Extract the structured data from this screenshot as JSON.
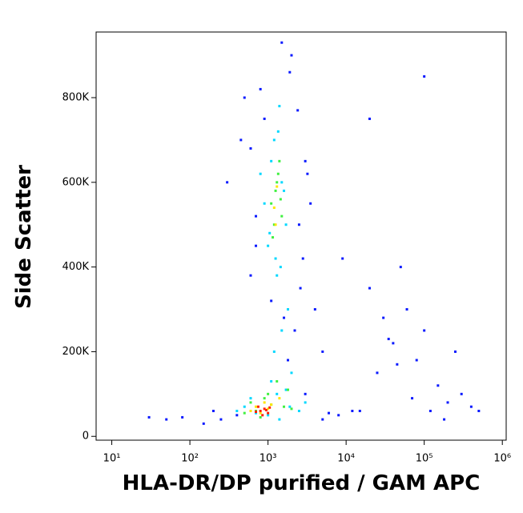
{
  "chart_data": {
    "type": "scatter",
    "xlabel": "HLA-DR/DP purified / GAM APC",
    "ylabel": "Side Scatter",
    "xscale": "log",
    "xlim": [
      6.3,
      1120000
    ],
    "ylim": [
      -9000,
      955000
    ],
    "xticks": [
      {
        "value": 10,
        "label": "10¹"
      },
      {
        "value": 100,
        "label": "10²"
      },
      {
        "value": 1000,
        "label": "10³"
      },
      {
        "value": 10000,
        "label": "10⁴"
      },
      {
        "value": 100000,
        "label": "10⁵"
      },
      {
        "value": 1000000,
        "label": "10⁶"
      }
    ],
    "yticks": [
      0,
      {
        "value": 200000,
        "label": "200K"
      },
      {
        "value": 400000,
        "label": "400K"
      },
      {
        "value": 600000,
        "label": "600K"
      },
      {
        "value": 800000,
        "label": "800K"
      }
    ],
    "series": [
      {
        "color": "#0a1aff",
        "x": [
          300,
          450,
          500,
          700,
          2500,
          3000,
          3500,
          4000,
          5000,
          400,
          600,
          800,
          2000,
          2200,
          2800,
          1800,
          900,
          1500,
          2600,
          3200,
          250,
          150,
          80,
          200,
          5000,
          8000,
          15000,
          20000,
          30000,
          40000,
          60000,
          80000,
          100000,
          150000,
          200000,
          300000,
          400000,
          25000,
          50000,
          120000,
          35000,
          70000,
          250000,
          500000,
          9000,
          12000,
          45000,
          180000,
          600,
          2400,
          1100,
          1600,
          1900,
          700,
          3000,
          30,
          50,
          20000,
          100000,
          6000
        ],
        "values": [
          600000,
          700000,
          800000,
          450000,
          500000,
          650000,
          550000,
          300000,
          200000,
          50000,
          380000,
          820000,
          900000,
          250000,
          420000,
          180000,
          750000,
          930000,
          350000,
          620000,
          40000,
          30000,
          45000,
          60000,
          40000,
          50000,
          60000,
          350000,
          280000,
          220000,
          300000,
          180000,
          250000,
          120000,
          80000,
          100000,
          70000,
          150000,
          400000,
          60000,
          230000,
          90000,
          200000,
          60000,
          420000,
          60000,
          170000,
          40000,
          680000,
          770000,
          320000,
          280000,
          860000,
          520000,
          100000,
          45000,
          40000,
          750000,
          850000,
          55000
        ]
      },
      {
        "color": "#00d8ff",
        "x": [
          1000,
          1200,
          1500,
          1300,
          900,
          1100,
          1700,
          1400,
          800,
          1250,
          1600,
          1050,
          1350,
          1450,
          500,
          600,
          1500,
          2000,
          1200,
          1800,
          400,
          3000,
          1300,
          1100,
          1700,
          1000,
          1400,
          1900,
          700,
          2500
        ],
        "values": [
          450000,
          700000,
          600000,
          380000,
          550000,
          650000,
          500000,
          780000,
          620000,
          420000,
          580000,
          480000,
          720000,
          400000,
          70000,
          90000,
          250000,
          150000,
          200000,
          300000,
          60000,
          80000,
          100000,
          130000,
          110000,
          50000,
          40000,
          70000,
          55000,
          60000
        ]
      },
      {
        "color": "#40f040",
        "x": [
          1100,
          1300,
          1200,
          1400,
          1500,
          1250,
          1150,
          1350,
          600,
          700,
          900,
          1000,
          1600,
          500,
          2000,
          1800,
          800,
          1100,
          1300,
          1450
        ],
        "values": [
          550000,
          600000,
          500000,
          650000,
          520000,
          580000,
          470000,
          620000,
          80000,
          60000,
          90000,
          100000,
          70000,
          55000,
          65000,
          110000,
          45000,
          75000,
          130000,
          560000
        ]
      },
      {
        "color": "#ffe600",
        "x": [
          1200,
          1300,
          1250,
          700,
          800,
          900,
          1000,
          1100,
          600,
          1400
        ],
        "values": [
          540000,
          590000,
          500000,
          70000,
          55000,
          80000,
          65000,
          75000,
          60000,
          90000
        ]
      },
      {
        "color": "#ff2000",
        "x": [
          800,
          900,
          1000,
          750,
          850,
          950,
          700,
          1050
        ],
        "values": [
          60000,
          65000,
          55000,
          70000,
          50000,
          62000,
          58000,
          68000
        ]
      }
    ]
  }
}
